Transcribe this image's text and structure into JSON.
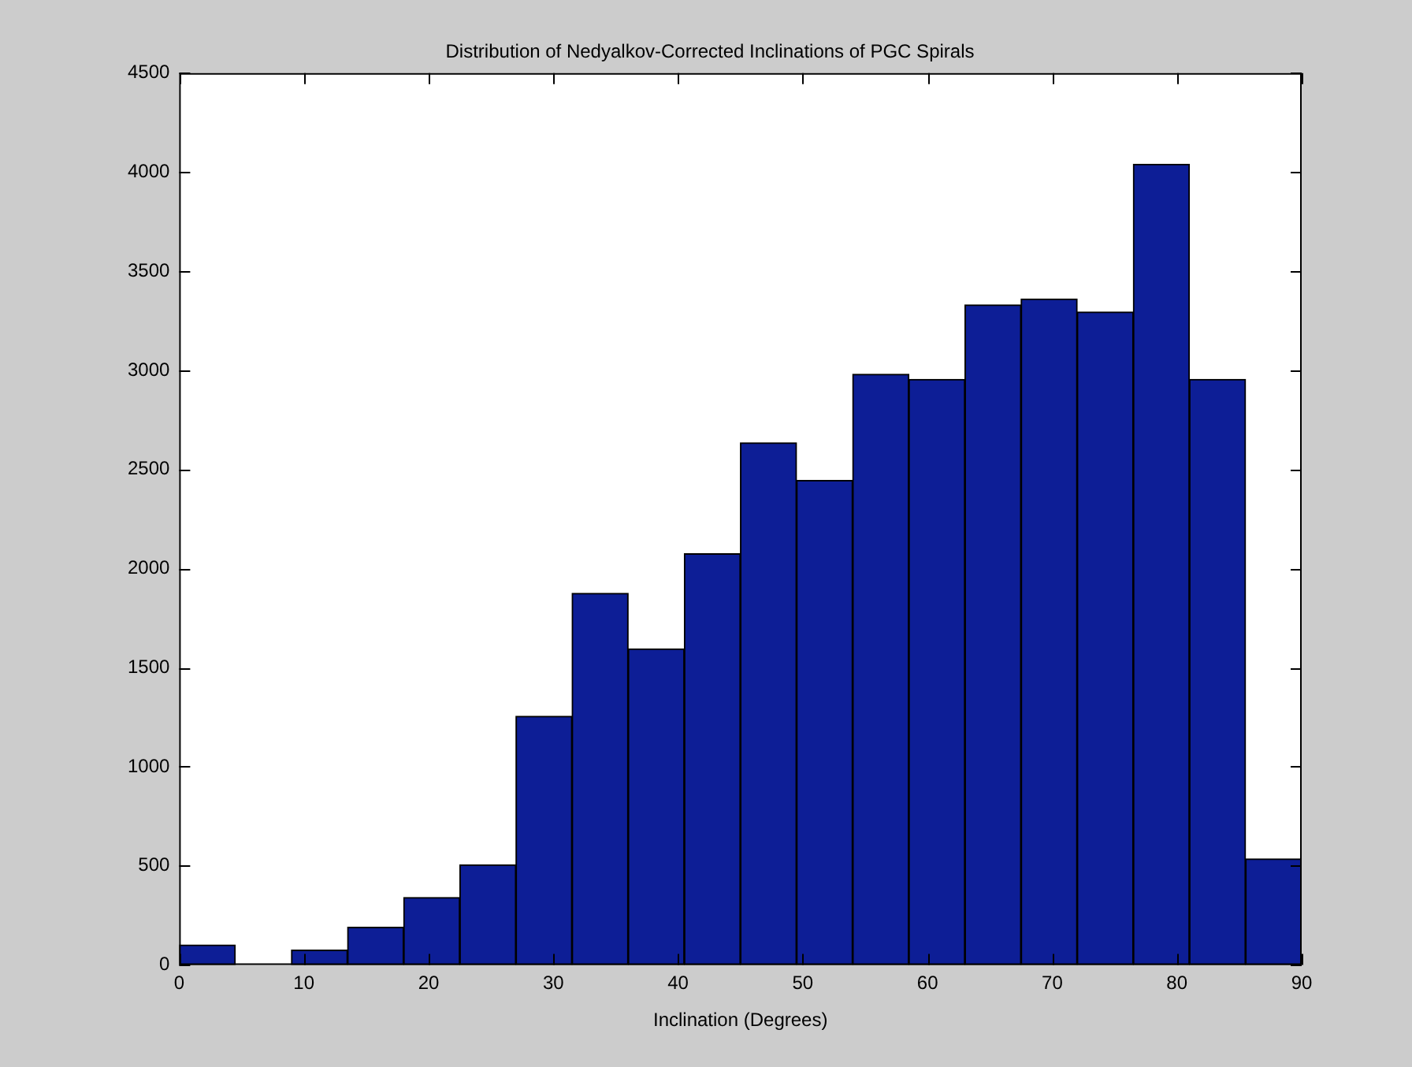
{
  "chart_data": {
    "type": "histogram",
    "title": "Distribution of Nedyalkov-Corrected Inclinations of PGC Spirals",
    "xlabel": "Inclination (Degrees)",
    "bins": [
      0,
      4.5,
      9,
      13.5,
      18,
      22.5,
      27,
      31.5,
      36,
      40.5,
      45,
      49.5,
      54,
      58.5,
      63,
      67.5,
      72,
      76.5,
      81,
      85.5,
      90
    ],
    "values": [
      100,
      0,
      75,
      190,
      340,
      505,
      1255,
      1875,
      1595,
      2075,
      2635,
      2445,
      2980,
      2955,
      3330,
      3360,
      3295,
      4040,
      2955,
      535
    ],
    "color": "#0d1e96",
    "xlim": [
      0,
      90
    ],
    "xticks": [
      0,
      10,
      20,
      30,
      40,
      50,
      60,
      70,
      80,
      90
    ],
    "ylim": [
      0,
      4500
    ],
    "yticks": [
      0,
      500,
      1000,
      1500,
      2000,
      2500,
      3000,
      3500,
      4000,
      4500
    ],
    "grid": false,
    "legend": false
  }
}
